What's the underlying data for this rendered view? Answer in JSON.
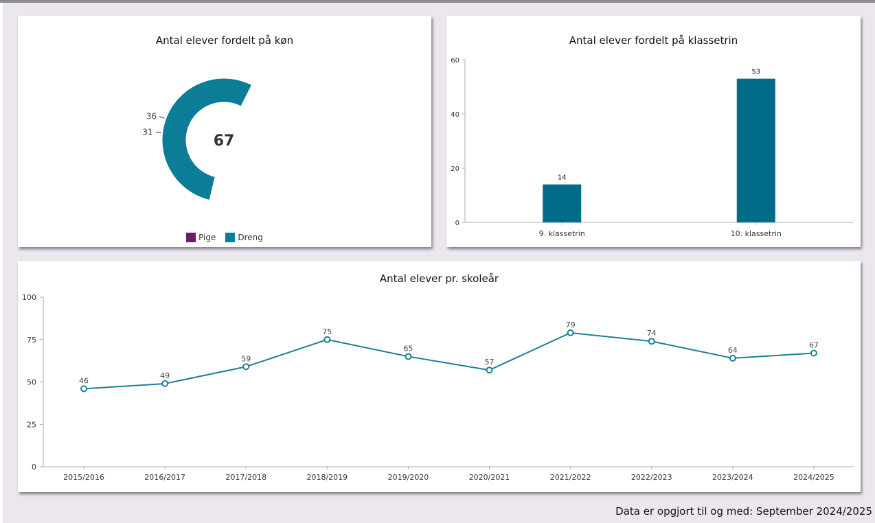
{
  "colors": {
    "pige": "#6b1d6b",
    "dreng": "#0b7d96",
    "bar": "#006b87",
    "line": "#1a7f96"
  },
  "footer_text": "Data er opgjort til og med: September 2024/2025",
  "chart_data": [
    {
      "type": "pie",
      "title": "Antal elever fordelt på køn",
      "center_label": "67",
      "categories": [
        "Pige",
        "Dreng"
      ],
      "values": [
        31,
        36
      ],
      "legend": "bottom"
    },
    {
      "type": "bar",
      "title": "Antal elever fordelt på klassetrin",
      "categories": [
        "9. klassetrin",
        "10. klassetrin"
      ],
      "values": [
        14,
        53
      ],
      "ylim": [
        0,
        60
      ],
      "yticks": [
        0,
        20,
        40,
        60
      ],
      "grid": false
    },
    {
      "type": "line",
      "title": "Antal elever pr. skoleår",
      "categories": [
        "2015/2016",
        "2016/2017",
        "2017/2018",
        "2018/2019",
        "2019/2020",
        "2020/2021",
        "2021/2022",
        "2022/2023",
        "2023/2024",
        "2024/2025"
      ],
      "values": [
        46,
        49,
        59,
        75,
        65,
        57,
        79,
        74,
        64,
        67
      ],
      "ylim": [
        0,
        100
      ],
      "yticks": [
        0,
        25,
        50,
        75,
        100
      ],
      "grid": false
    }
  ]
}
